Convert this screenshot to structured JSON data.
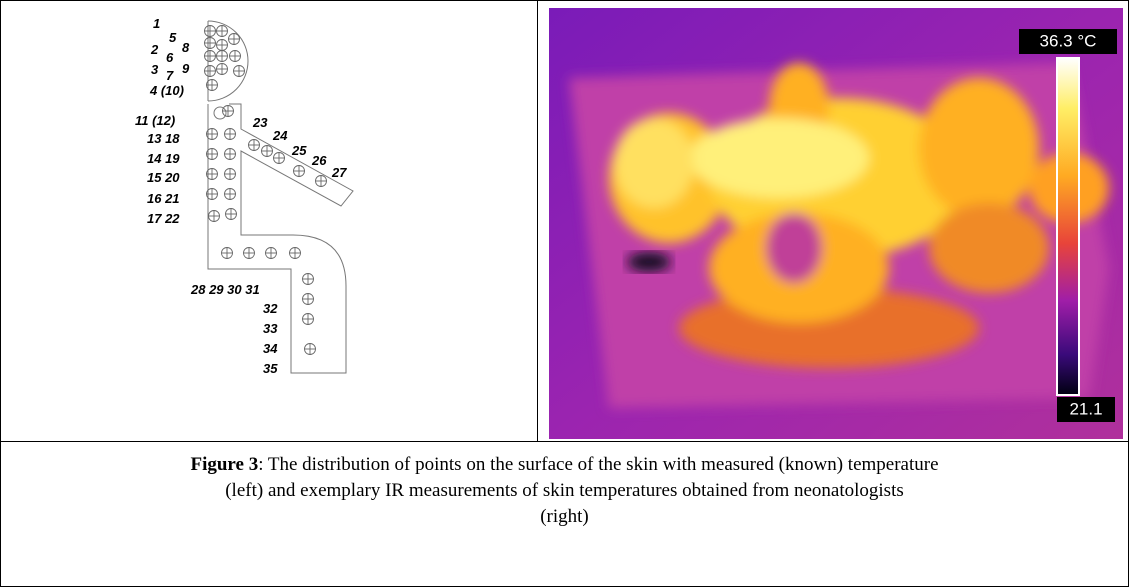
{
  "left_panel": {
    "labels": [
      "1",
      "5",
      "2",
      "6",
      "8",
      "3",
      "7",
      "9",
      "4 (10)",
      "11 (12)",
      "13 18",
      "14 19",
      "15 20",
      "16 21",
      "17 22",
      "23",
      "24",
      "25",
      "26",
      "27",
      "28 29 30 31",
      "32",
      "33",
      "34",
      "35"
    ]
  },
  "right_panel": {
    "max_label": "36.3 °C",
    "min_label": "21.1"
  },
  "caption": {
    "label": "Figure 3",
    "lines": [
      ": The distribution of points on the surface of the skin with measured (known) temperature",
      "(left) and exemplary IR measurements of skin temperatures obtained from neonatologists",
      "(right)"
    ]
  }
}
